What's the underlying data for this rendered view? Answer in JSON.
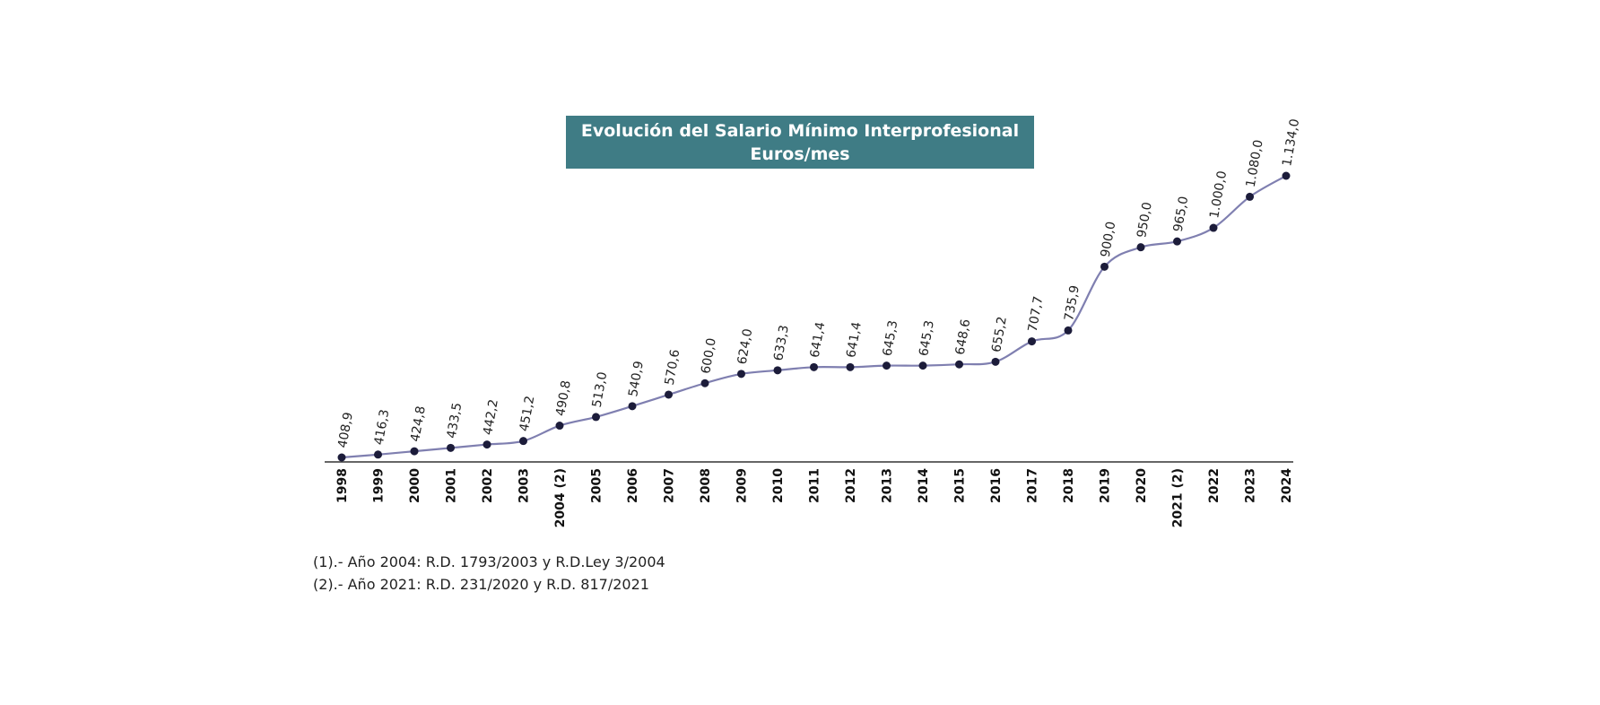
{
  "chart_data": {
    "type": "line",
    "title": "Evolución del Salario Mínimo Interprofesional",
    "subtitle": "Euros/mes",
    "categories": [
      "1998",
      "1999",
      "2000",
      "2001",
      "2002",
      "2003",
      "2004 (2)",
      "2005",
      "2006",
      "2007",
      "2008",
      "2009",
      "2010",
      "2011",
      "2012",
      "2013",
      "2014",
      "2015",
      "2016",
      "2017",
      "2018",
      "2019",
      "2020",
      "2021 (2)",
      "2022",
      "2023",
      "2024"
    ],
    "values": [
      408.9,
      416.3,
      424.8,
      433.5,
      442.2,
      451.2,
      490.8,
      513.0,
      540.9,
      570.6,
      600.0,
      624.0,
      633.3,
      641.4,
      641.4,
      645.3,
      645.3,
      648.6,
      655.2,
      707.7,
      735.9,
      900.0,
      950.0,
      965.0,
      1000.0,
      1080.0,
      1134.0
    ],
    "value_labels": [
      "408,9",
      "416,3",
      "424,8",
      "433,5",
      "442,2",
      "451,2",
      "490,8",
      "513,0",
      "540,9",
      "570,6",
      "600,0",
      "624,0",
      "633,3",
      "641,4",
      "641,4",
      "645,3",
      "645,3",
      "648,6",
      "655,2",
      "707,7",
      "735,9",
      "900,0",
      "950,0",
      "965,0",
      "1.000,0",
      "1.080,0",
      "1.134,0"
    ],
    "xlabel": "",
    "ylabel": "",
    "line_color": "#7f7fb0",
    "marker_color": "#1c1c3a",
    "grid": false,
    "notes": [
      "(1).- Año 2004: R.D. 1793/2003 y R.D.Ley 3/2004",
      "(2).- Año 2021: R.D. 231/2020 y R.D. 817/2021"
    ]
  }
}
